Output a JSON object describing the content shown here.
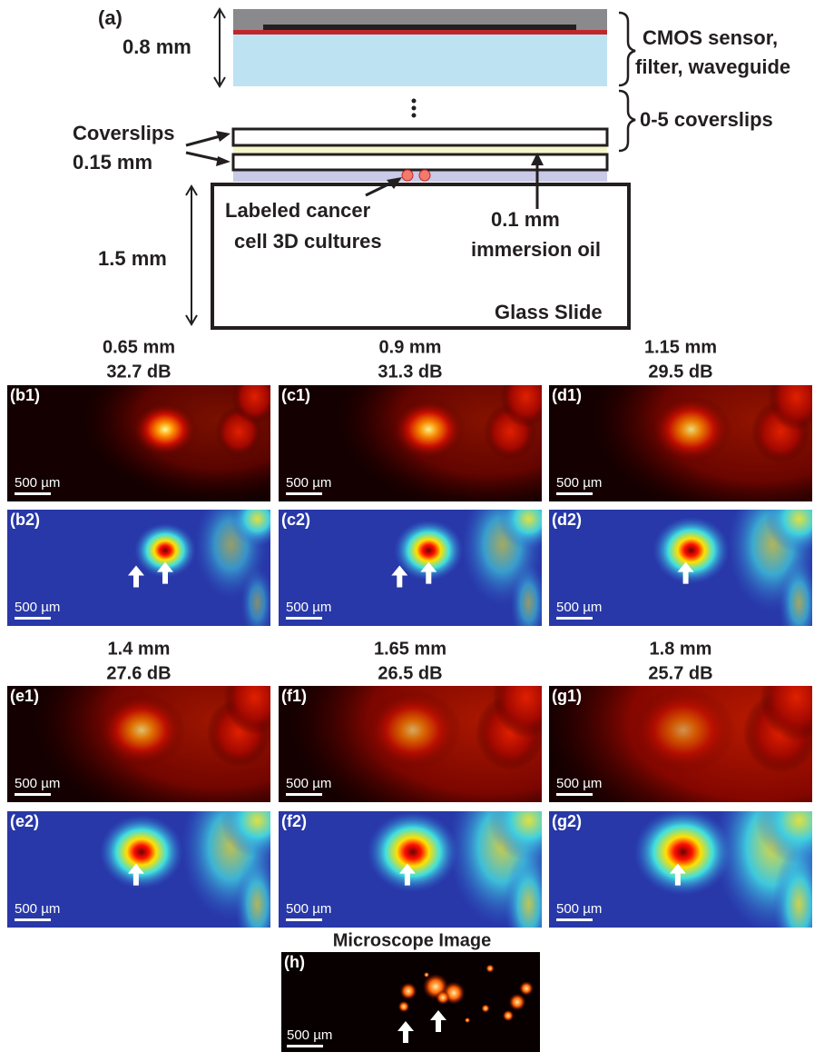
{
  "diagram": {
    "label": "(a)",
    "sensor_thickness": "0.8 mm",
    "sensor_label": [
      "CMOS sensor,",
      "filter, waveguide"
    ],
    "coverslips_brace": "0-5 coverslips",
    "coverslips_label": "Coverslips",
    "coverslip_thickness": "0.15 mm",
    "cells_label": [
      "Labeled cancer",
      "cell 3D cultures"
    ],
    "oil_label": [
      "0.1 mm",
      "immersion oil"
    ],
    "slide_thickness": "1.5 mm",
    "slide_label": "Glass Slide"
  },
  "columns": [
    {
      "distance": "0.65 mm",
      "psnr": "32.7 dB",
      "labels": [
        "(b1)",
        "(b2)"
      ]
    },
    {
      "distance": "0.9 mm",
      "psnr": "31.3 dB",
      "labels": [
        "(c1)",
        "(c2)"
      ]
    },
    {
      "distance": "1.15 mm",
      "psnr": "29.5 dB",
      "labels": [
        "(d1)",
        "(d2)"
      ]
    },
    {
      "distance": "1.4 mm",
      "psnr": "27.6 dB",
      "labels": [
        "(e1)",
        "(e2)"
      ]
    },
    {
      "distance": "1.65 mm",
      "psnr": "26.5 dB",
      "labels": [
        "(f1)",
        "(f2)"
      ]
    },
    {
      "distance": "1.8 mm",
      "psnr": "25.7 dB",
      "labels": [
        "(g1)",
        "(g2)"
      ]
    }
  ],
  "scale_bar": "500 µm",
  "microscope": {
    "title": "Microscope Image",
    "label": "(h)"
  }
}
